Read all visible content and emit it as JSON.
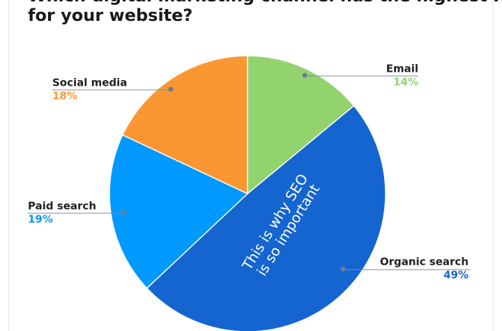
{
  "chart_data": {
    "type": "pie",
    "title": [
      "Which digital marketing channel has the highest ROI",
      "for your website?"
    ],
    "categories": [
      "Email",
      "Organic search",
      "Paid search",
      "Social media"
    ],
    "values": [
      14,
      49,
      19,
      18
    ],
    "value_labels": [
      "14%",
      "49%",
      "19%",
      "18%"
    ],
    "colors": [
      "#92d36e",
      "#1565d0",
      "#0099ff",
      "#fb9733"
    ],
    "annotation": [
      "This is why SEO",
      "is so important"
    ]
  }
}
